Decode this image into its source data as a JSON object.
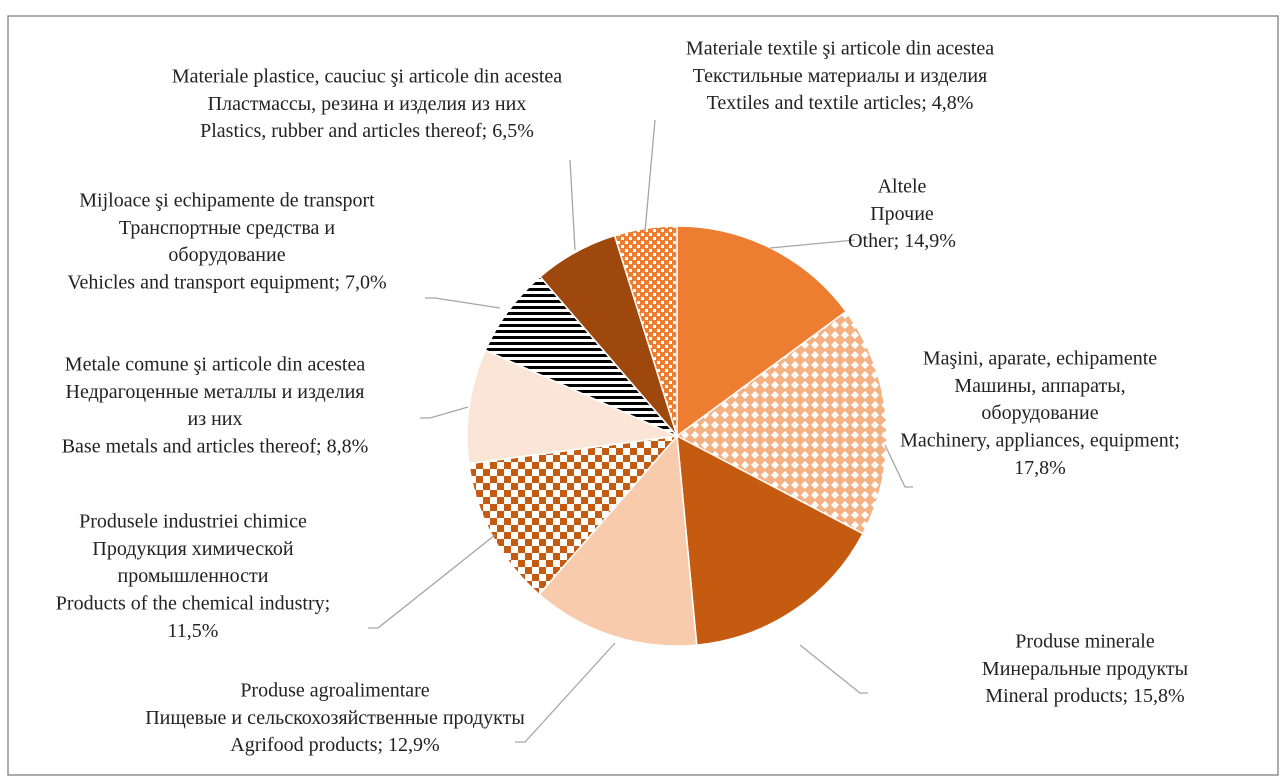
{
  "chart_data": {
    "type": "pie",
    "label_lines": [
      [
        "Altele",
        "Прочие",
        "Other; 14,9%"
      ],
      [
        "Maşini, aparate, echipamente",
        "Машины, аппараты,",
        "оборудование",
        "Machinery, appliances, equipment;",
        "17,8%"
      ],
      [
        "Produse minerale",
        "Минеральные продукты",
        "Mineral products; 15,8%"
      ],
      [
        "Produse agroalimentare",
        "Пищевые и сельскохозяйственные продукты",
        "Agrifood products; 12,9%"
      ],
      [
        "Produsele industriei chimice",
        "Продукция химической",
        "промышленности",
        "Products of the chemical industry;",
        "11,5%"
      ],
      [
        "Metale comune şi articole din acestea",
        "Недрагоценные металлы и изделия",
        "из них",
        "Base metals and articles thereof; 8,8%"
      ],
      [
        "Mijloace şi echipamente de transport",
        "Транспортные средства и",
        "оборудование",
        "Vehicles and  transport equipment; 7,0%"
      ],
      [
        "Materiale plastice, cauciuc şi articole din acestea",
        "Пластмассы, резина и изделия из них",
        "Plastics, rubber and articles thereof; 6,5%"
      ],
      [
        "Materiale textile şi articole din acestea",
        "Текстильные материалы и изделия",
        "Textiles and textile articles; 4,8%"
      ]
    ],
    "values": [
      14.9,
      17.8,
      15.8,
      12.9,
      11.5,
      8.8,
      7.0,
      6.5,
      4.8
    ],
    "colors": [
      "#ED7D31",
      "#F4B183",
      "#C55A11",
      "#F8CBAD",
      "#C55A11",
      "#FBE5D6",
      "#000000",
      "#9E480E",
      "#ED7D31"
    ],
    "patterns": [
      "solid",
      "dots",
      "solid",
      "solid",
      "checker",
      "solid",
      "stripes",
      "solid",
      "small-checker"
    ]
  }
}
